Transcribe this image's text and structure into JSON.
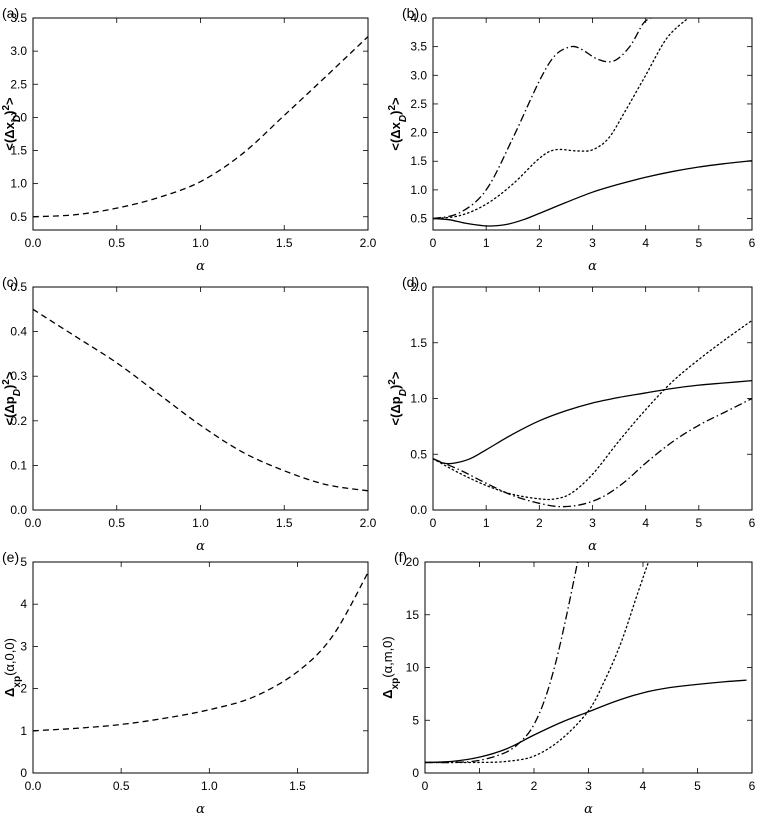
{
  "chart_data": [
    {
      "panel": "(a)",
      "type": "line",
      "xlabel": "α",
      "ylabel": "<(Δx_D)^2>",
      "xlim": [
        0,
        2.0
      ],
      "ylim": [
        0.3,
        3.5
      ],
      "xticks": [
        "0.0",
        "0.5",
        "1.0",
        "1.5",
        "2.0"
      ],
      "yticks": [
        "0.5",
        "1.0",
        "1.5",
        "2.0",
        "2.5",
        "3.0",
        "3.5"
      ],
      "series": [
        {
          "name": "dashed",
          "style": "dashed",
          "x": [
            0,
            0.25,
            0.5,
            0.75,
            1.0,
            1.25,
            1.5,
            1.75,
            2.0
          ],
          "y": [
            0.5,
            0.53,
            0.63,
            0.79,
            1.03,
            1.45,
            2.03,
            2.62,
            3.22
          ]
        }
      ]
    },
    {
      "panel": "(b)",
      "type": "line",
      "xlabel": "α",
      "ylabel": "<(Δx_D)^2>",
      "xlim": [
        0,
        6
      ],
      "ylim": [
        0.3,
        4.0
      ],
      "xticks": [
        "0",
        "1",
        "2",
        "3",
        "4",
        "5",
        "6"
      ],
      "yticks": [
        "0.5",
        "1.0",
        "1.5",
        "2.0",
        "2.5",
        "3.0",
        "3.5",
        "4.0"
      ],
      "series": [
        {
          "name": "solid",
          "style": "solid",
          "x": [
            0,
            0.3,
            0.6,
            0.9,
            1.1,
            1.4,
            1.7,
            2.0,
            2.5,
            3.0,
            3.5,
            4.0,
            4.5,
            5.0,
            5.5,
            6.0
          ],
          "y": [
            0.5,
            0.48,
            0.42,
            0.38,
            0.37,
            0.4,
            0.48,
            0.59,
            0.78,
            0.96,
            1.1,
            1.22,
            1.32,
            1.4,
            1.46,
            1.51
          ]
        },
        {
          "name": "dotted",
          "style": "dotted",
          "x": [
            0,
            0.5,
            1.0,
            1.5,
            2.0,
            2.3,
            2.7,
            3.0,
            3.3,
            3.6,
            4.0,
            4.4,
            4.8
          ],
          "y": [
            0.5,
            0.55,
            0.75,
            1.1,
            1.55,
            1.7,
            1.68,
            1.7,
            1.9,
            2.35,
            3.0,
            3.65,
            4.0
          ]
        },
        {
          "name": "dashdot",
          "style": "dashdot",
          "x": [
            0,
            0.5,
            1.0,
            1.5,
            2.0,
            2.3,
            2.6,
            2.8,
            3.1,
            3.4,
            3.7,
            3.95,
            4.1
          ],
          "y": [
            0.5,
            0.6,
            1.0,
            1.9,
            2.9,
            3.35,
            3.5,
            3.45,
            3.28,
            3.25,
            3.5,
            3.9,
            4.0
          ]
        }
      ]
    },
    {
      "panel": "(c)",
      "type": "line",
      "xlabel": "α",
      "ylabel": "<(Δp_D)^2>",
      "xlim": [
        0,
        2.0
      ],
      "ylim": [
        0.0,
        0.5
      ],
      "xticks": [
        "0.0",
        "0.5",
        "1.0",
        "1.5",
        "2.0"
      ],
      "yticks": [
        "0.0",
        "0.1",
        "0.2",
        "0.3",
        "0.4",
        "0.5"
      ],
      "series": [
        {
          "name": "dashed",
          "style": "dashed",
          "x": [
            0,
            0.25,
            0.5,
            0.75,
            1.0,
            1.25,
            1.5,
            1.75,
            2.0
          ],
          "y": [
            0.45,
            0.39,
            0.33,
            0.26,
            0.19,
            0.13,
            0.088,
            0.057,
            0.043
          ]
        }
      ]
    },
    {
      "panel": "(d)",
      "type": "line",
      "xlabel": "α",
      "ylabel": "<(Δp_D)^2>",
      "xlim": [
        0,
        6
      ],
      "ylim": [
        0.0,
        2.0
      ],
      "xticks": [
        "0",
        "1",
        "2",
        "3",
        "4",
        "5",
        "6"
      ],
      "yticks": [
        "0.0",
        "0.5",
        "1.0",
        "1.5",
        "2.0"
      ],
      "series": [
        {
          "name": "solid",
          "style": "solid",
          "x": [
            0,
            0.2,
            0.4,
            0.7,
            1.0,
            1.5,
            2.0,
            2.5,
            3.0,
            3.5,
            4.0,
            4.5,
            5.0,
            5.5,
            6.0
          ],
          "y": [
            0.46,
            0.42,
            0.42,
            0.46,
            0.54,
            0.68,
            0.8,
            0.89,
            0.96,
            1.01,
            1.05,
            1.09,
            1.12,
            1.14,
            1.16
          ]
        },
        {
          "name": "dotted",
          "style": "dotted",
          "x": [
            0,
            0.5,
            1.0,
            1.5,
            2.0,
            2.3,
            2.6,
            3.0,
            3.5,
            4.0,
            4.5,
            5.0,
            5.5,
            6.0
          ],
          "y": [
            0.46,
            0.33,
            0.22,
            0.14,
            0.1,
            0.1,
            0.15,
            0.32,
            0.62,
            0.9,
            1.15,
            1.35,
            1.53,
            1.7
          ]
        },
        {
          "name": "dashdot",
          "style": "dashdot",
          "x": [
            0,
            0.5,
            1.0,
            1.5,
            2.0,
            2.4,
            2.8,
            3.2,
            3.6,
            4.0,
            4.5,
            5.0,
            5.5,
            6.0
          ],
          "y": [
            0.46,
            0.36,
            0.24,
            0.13,
            0.06,
            0.03,
            0.05,
            0.12,
            0.25,
            0.42,
            0.61,
            0.76,
            0.88,
            1.0
          ]
        }
      ]
    },
    {
      "panel": "(e)",
      "type": "line",
      "xlabel": "α",
      "ylabel": "Δxp(α,0,0)",
      "xlim": [
        0,
        1.9
      ],
      "ylim": [
        0,
        5
      ],
      "xticks": [
        "0.0",
        "0.5",
        "1.0",
        "1.5"
      ],
      "yticks": [
        "0",
        "1",
        "2",
        "3",
        "4",
        "5"
      ],
      "series": [
        {
          "name": "dashed",
          "style": "dashed",
          "x": [
            0,
            0.25,
            0.5,
            0.75,
            1.0,
            1.25,
            1.5,
            1.7,
            1.9
          ],
          "y": [
            1.0,
            1.06,
            1.15,
            1.3,
            1.5,
            1.8,
            2.4,
            3.25,
            4.75
          ]
        }
      ]
    },
    {
      "panel": "(f)",
      "type": "line",
      "xlabel": "α",
      "ylabel": "Δxp(α,m,0)",
      "xlim": [
        0,
        6
      ],
      "ylim": [
        0,
        20
      ],
      "xticks": [
        "0",
        "1",
        "2",
        "3",
        "4",
        "5",
        "6"
      ],
      "yticks": [
        "0",
        "5",
        "10",
        "15",
        "20"
      ],
      "series": [
        {
          "name": "solid",
          "style": "solid",
          "x": [
            0,
            0.5,
            1.0,
            1.5,
            2.0,
            2.5,
            3.0,
            3.5,
            4.0,
            4.5,
            5.0,
            5.5,
            5.9
          ],
          "y": [
            1.0,
            1.1,
            1.5,
            2.3,
            3.6,
            4.8,
            5.8,
            6.8,
            7.6,
            8.1,
            8.4,
            8.65,
            8.8
          ]
        },
        {
          "name": "dotted",
          "style": "dotted",
          "x": [
            0,
            0.5,
            1.0,
            1.5,
            2.0,
            2.5,
            3.0,
            3.3,
            3.6,
            3.9,
            4.1
          ],
          "y": [
            1.0,
            1.0,
            1.0,
            1.1,
            1.6,
            3.2,
            5.9,
            8.8,
            12.4,
            17.0,
            20.0
          ]
        },
        {
          "name": "dashdot",
          "style": "dashdot",
          "x": [
            0,
            0.5,
            1.0,
            1.5,
            1.8,
            2.0,
            2.2,
            2.4,
            2.6,
            2.8
          ],
          "y": [
            1.0,
            1.0,
            1.2,
            2.0,
            3.2,
            4.6,
            7.0,
            10.5,
            15.0,
            20.0
          ]
        }
      ]
    }
  ]
}
